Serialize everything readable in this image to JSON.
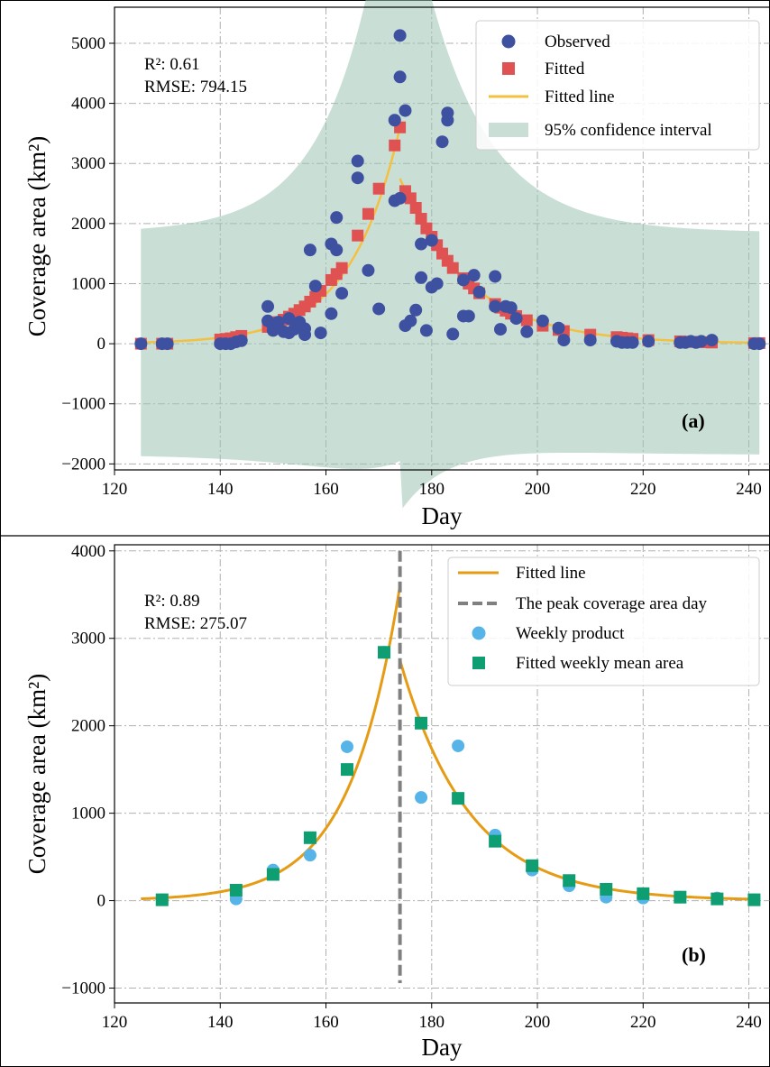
{
  "chart_data": [
    {
      "panel": "a",
      "type": "scatter",
      "panel_tag": "(a)",
      "xlabel": "Day",
      "ylabel": "Coverage area (km²)",
      "xlim": [
        120,
        244
      ],
      "ylim": [
        -2100,
        5600
      ],
      "xticks": [
        120,
        140,
        160,
        180,
        200,
        220,
        240
      ],
      "yticks": [
        -2000,
        -1000,
        0,
        1000,
        2000,
        3000,
        4000,
        5000
      ],
      "grid": true,
      "legend_position": "top-right",
      "stats": {
        "r2_label": "R²: 0.61",
        "rmse_label": "RMSE: 794.15"
      },
      "peak_day": 174,
      "colors": {
        "observed": "#3e50a0",
        "fitted": "#e05252",
        "fitted_line": "#f4c040",
        "ci": "#9cc4b4"
      },
      "legend": [
        {
          "key": "observed",
          "label": "Observed"
        },
        {
          "key": "fitted",
          "label": "Fitted"
        },
        {
          "key": "fitted_line",
          "label": "Fitted line"
        },
        {
          "key": "ci",
          "label": "95% confidence interval"
        }
      ],
      "series": [
        {
          "key": "observed",
          "name": "Observed",
          "points": [
            [
              125,
              0
            ],
            [
              129,
              0
            ],
            [
              130,
              0
            ],
            [
              140,
              0
            ],
            [
              141,
              0
            ],
            [
              142,
              0
            ],
            [
              143,
              30
            ],
            [
              144,
              50
            ],
            [
              149,
              620
            ],
            [
              149,
              380
            ],
            [
              150,
              220
            ],
            [
              150,
              300
            ],
            [
              151,
              360
            ],
            [
              152,
              200
            ],
            [
              153,
              420
            ],
            [
              153,
              180
            ],
            [
              154,
              240
            ],
            [
              155,
              300
            ],
            [
              155,
              360
            ],
            [
              156,
              150
            ],
            [
              156,
              250
            ],
            [
              157,
              1560
            ],
            [
              158,
              960
            ],
            [
              159,
              180
            ],
            [
              161,
              500
            ],
            [
              161,
              1660
            ],
            [
              162,
              2100
            ],
            [
              162,
              1560
            ],
            [
              163,
              840
            ],
            [
              166,
              3040
            ],
            [
              166,
              2760
            ],
            [
              168,
              1220
            ],
            [
              170,
              580
            ],
            [
              173,
              3720
            ],
            [
              173,
              2380
            ],
            [
              174,
              2420
            ],
            [
              174,
              4440
            ],
            [
              174,
              5130
            ],
            [
              175,
              3880
            ],
            [
              175,
              300
            ],
            [
              176,
              380
            ],
            [
              177,
              560
            ],
            [
              178,
              1660
            ],
            [
              178,
              1100
            ],
            [
              179,
              220
            ],
            [
              180,
              1720
            ],
            [
              180,
              940
            ],
            [
              181,
              1000
            ],
            [
              182,
              3360
            ],
            [
              183,
              3840
            ],
            [
              183,
              3720
            ],
            [
              184,
              160
            ],
            [
              186,
              1060
            ],
            [
              186,
              460
            ],
            [
              187,
              460
            ],
            [
              188,
              1140
            ],
            [
              189,
              860
            ],
            [
              192,
              1120
            ],
            [
              192,
              620
            ],
            [
              193,
              240
            ],
            [
              194,
              620
            ],
            [
              195,
              600
            ],
            [
              196,
              420
            ],
            [
              198,
              200
            ],
            [
              201,
              380
            ],
            [
              204,
              260
            ],
            [
              205,
              60
            ],
            [
              210,
              60
            ],
            [
              215,
              40
            ],
            [
              216,
              20
            ],
            [
              217,
              20
            ],
            [
              218,
              20
            ],
            [
              221,
              40
            ],
            [
              227,
              20
            ],
            [
              228,
              20
            ],
            [
              229,
              40
            ],
            [
              230,
              20
            ],
            [
              231,
              40
            ],
            [
              233,
              60
            ],
            [
              241,
              0
            ],
            [
              242,
              0
            ]
          ]
        },
        {
          "key": "fitted",
          "name": "Fitted",
          "points": [
            [
              125,
              0
            ],
            [
              129,
              0
            ],
            [
              130,
              0
            ],
            [
              140,
              70
            ],
            [
              141,
              80
            ],
            [
              142,
              90
            ],
            [
              143,
              110
            ],
            [
              144,
              130
            ],
            [
              149,
              280
            ],
            [
              150,
              310
            ],
            [
              151,
              360
            ],
            [
              152,
              400
            ],
            [
              153,
              450
            ],
            [
              154,
              500
            ],
            [
              155,
              560
            ],
            [
              156,
              620
            ],
            [
              157,
              700
            ],
            [
              158,
              780
            ],
            [
              159,
              880
            ],
            [
              161,
              1060
            ],
            [
              162,
              1160
            ],
            [
              163,
              1260
            ],
            [
              166,
              1800
            ],
            [
              168,
              2160
            ],
            [
              170,
              2580
            ],
            [
              173,
              3300
            ],
            [
              174,
              3600
            ],
            [
              175,
              2540
            ],
            [
              176,
              2420
            ],
            [
              177,
              2260
            ],
            [
              178,
              2080
            ],
            [
              179,
              1920
            ],
            [
              180,
              1780
            ],
            [
              181,
              1640
            ],
            [
              182,
              1500
            ],
            [
              183,
              1380
            ],
            [
              184,
              1260
            ],
            [
              186,
              1090
            ],
            [
              187,
              1000
            ],
            [
              188,
              920
            ],
            [
              189,
              840
            ],
            [
              192,
              660
            ],
            [
              193,
              600
            ],
            [
              194,
              550
            ],
            [
              195,
              500
            ],
            [
              196,
              460
            ],
            [
              198,
              390
            ],
            [
              201,
              300
            ],
            [
              204,
              230
            ],
            [
              205,
              210
            ],
            [
              210,
              150
            ],
            [
              215,
              110
            ],
            [
              216,
              100
            ],
            [
              217,
              90
            ],
            [
              218,
              80
            ],
            [
              221,
              60
            ],
            [
              227,
              40
            ],
            [
              228,
              35
            ],
            [
              229,
              30
            ],
            [
              230,
              30
            ],
            [
              231,
              25
            ],
            [
              233,
              20
            ],
            [
              241,
              10
            ],
            [
              242,
              10
            ]
          ]
        }
      ]
    },
    {
      "panel": "b",
      "type": "line",
      "panel_tag": "(b)",
      "xlabel": "Day",
      "ylabel": "Coverage area (km²)",
      "xlim": [
        120,
        244
      ],
      "ylim": [
        -1170,
        4070
      ],
      "xticks": [
        120,
        140,
        160,
        180,
        200,
        220,
        240
      ],
      "yticks": [
        -1000,
        0,
        1000,
        2000,
        3000,
        4000
      ],
      "grid": true,
      "legend_position": "top-right",
      "stats": {
        "r2_label": "R²: 0.89",
        "rmse_label": "RMSE: 275.07"
      },
      "peak_day": 174,
      "peak_line": {
        "x": 174,
        "y_top": 4000
      },
      "colors": {
        "fitted_line": "#e69b14",
        "peak_line": "#808080",
        "weekly_product": "#56b4e9",
        "weekly_mean": "#0e9e72"
      },
      "legend": [
        {
          "key": "fitted_line",
          "label": "Fitted line"
        },
        {
          "key": "peak_line",
          "label": "The peak coverage area day"
        },
        {
          "key": "weekly_product",
          "label": "Weekly product"
        },
        {
          "key": "weekly_mean",
          "label": "Fitted weekly mean area"
        }
      ],
      "series": [
        {
          "key": "weekly_product",
          "name": "Weekly product",
          "points": [
            [
              129,
              10
            ],
            [
              143,
              20
            ],
            [
              150,
              350
            ],
            [
              157,
              520
            ],
            [
              164,
              1760
            ],
            [
              171,
              2840
            ],
            [
              178,
              1180
            ],
            [
              185,
              1770
            ],
            [
              192,
              750
            ],
            [
              199,
              350
            ],
            [
              206,
              170
            ],
            [
              213,
              40
            ],
            [
              220,
              30
            ],
            [
              227,
              40
            ],
            [
              234,
              30
            ],
            [
              241,
              10
            ]
          ]
        },
        {
          "key": "weekly_mean",
          "name": "Fitted weekly mean area",
          "points": [
            [
              129,
              10
            ],
            [
              143,
              120
            ],
            [
              150,
              300
            ],
            [
              157,
              720
            ],
            [
              164,
              1500
            ],
            [
              171,
              2840
            ],
            [
              178,
              2030
            ],
            [
              185,
              1170
            ],
            [
              192,
              680
            ],
            [
              199,
              400
            ],
            [
              206,
              230
            ],
            [
              213,
              130
            ],
            [
              220,
              80
            ],
            [
              227,
              40
            ],
            [
              234,
              20
            ],
            [
              241,
              10
            ]
          ]
        }
      ]
    }
  ]
}
